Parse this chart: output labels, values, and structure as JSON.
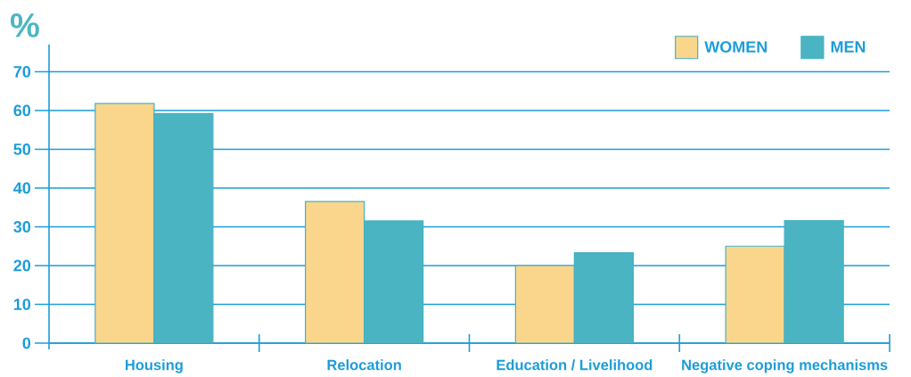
{
  "chart_data": {
    "type": "bar",
    "ylabel": "%",
    "categories": [
      "Housing",
      "Relocation",
      "Education / Livelihood",
      "Negative coping mechanisms"
    ],
    "series": [
      {
        "name": "WOMEN",
        "color": "#fad68c",
        "values": [
          61.8,
          36.5,
          20,
          25
        ]
      },
      {
        "name": "MEN",
        "color": "#4bb4c2",
        "values": [
          59.2,
          31.5,
          23.3,
          31.6
        ]
      }
    ],
    "ylim": [
      0,
      77
    ],
    "yticks": [
      0,
      10,
      20,
      30,
      40,
      50,
      60,
      70
    ],
    "grid": "y",
    "legend": "top right"
  }
}
